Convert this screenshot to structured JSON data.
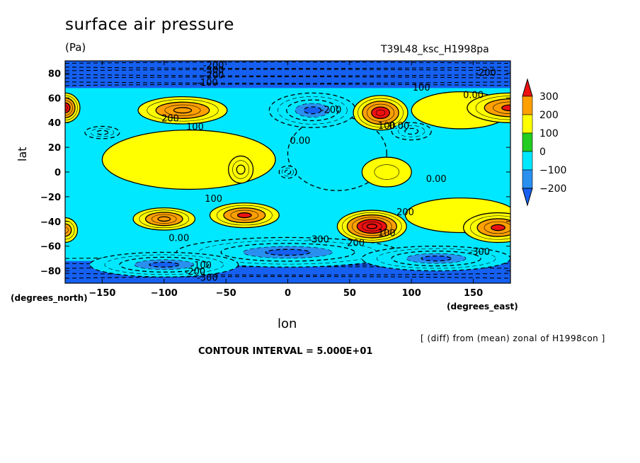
{
  "header": {
    "title": "surface air pressure",
    "units": "(Pa)",
    "run_id": "T39L48_ksc_H1998pa"
  },
  "axes": {
    "ylabel": "lat",
    "xlabel": "lon",
    "y_units": "(degrees_north)",
    "x_units": "(degrees_east)"
  },
  "footer": {
    "diff_note": "[ (diff) from (mean) zonal of H1998con ]",
    "contour_interval": "CONTOUR INTERVAL = 5.000E+01"
  },
  "colors": {
    "c_neg250": "#1560f0",
    "c_neg200": "#2a90f0",
    "c_neg100": "#00e8ff",
    "c_0": "#22cc22",
    "c_100": "#ffff00",
    "c_200": "#ffa000",
    "c_300": "#ee1111"
  },
  "chart_data": {
    "type": "contour",
    "title": "surface air pressure",
    "subtitle": "T39L48_ksc_H1998pa",
    "xlabel": "lon",
    "ylabel": "lat",
    "xlim": [
      -180,
      180
    ],
    "ylim": [
      -90,
      90
    ],
    "xticks": [
      -150,
      -100,
      -50,
      0,
      50,
      100,
      150
    ],
    "yticks": [
      -80,
      -60,
      -40,
      -20,
      0,
      20,
      40,
      60,
      80
    ],
    "colorbar": {
      "labels": [
        "300",
        "200",
        "100",
        "0",
        "−100",
        "−200"
      ]
    },
    "contour_interval": 50,
    "blobs": [
      {
        "lon": -180,
        "lat": 52,
        "rx": 12,
        "ry": 12,
        "value": 280
      },
      {
        "lon": 180,
        "lat": 52,
        "rx": 35,
        "ry": 12,
        "value": 250
      },
      {
        "lon": -85,
        "lat": 50,
        "rx": 36,
        "ry": 11,
        "value": 240
      },
      {
        "lon": 75,
        "lat": 48,
        "rx": 22,
        "ry": 14,
        "value": 300
      },
      {
        "lon": -100,
        "lat": -38,
        "rx": 25,
        "ry": 9,
        "value": 240
      },
      {
        "lon": -35,
        "lat": -35,
        "rx": 28,
        "ry": 10,
        "value": 250
      },
      {
        "lon": 68,
        "lat": -44,
        "rx": 28,
        "ry": 13,
        "value": 330
      },
      {
        "lon": 170,
        "lat": -45,
        "rx": 28,
        "ry": 12,
        "value": 260
      },
      {
        "lon": -180,
        "lat": -47,
        "rx": 10,
        "ry": 10,
        "value": 200
      },
      {
        "lon": -38,
        "lat": 2,
        "rx": 10,
        "ry": 11,
        "value": 140
      },
      {
        "lon": -80,
        "lat": 10,
        "rx": 70,
        "ry": 24,
        "value": 60
      },
      {
        "lon": 140,
        "lat": 50,
        "rx": 40,
        "ry": 15,
        "value": 60
      },
      {
        "lon": 140,
        "lat": -35,
        "rx": 45,
        "ry": 14,
        "value": 70
      },
      {
        "lon": -150,
        "lat": 32,
        "rx": 14,
        "ry": 5,
        "value": -160
      },
      {
        "lon": 20,
        "lat": 50,
        "rx": 35,
        "ry": 14,
        "value": -260
      },
      {
        "lon": 100,
        "lat": 33,
        "rx": 16,
        "ry": 7,
        "value": -160
      },
      {
        "lon": 0,
        "lat": 0,
        "rx": 7,
        "ry": 5,
        "value": -150
      },
      {
        "lon": 40,
        "lat": 15,
        "rx": 40,
        "ry": 30,
        "value": -20
      },
      {
        "lon": 80,
        "lat": 0,
        "rx": 20,
        "ry": 12,
        "value": 80
      },
      {
        "lon": 0,
        "lat": -65,
        "rx": 90,
        "ry": 12,
        "value": -260
      },
      {
        "lon": -100,
        "lat": -75,
        "rx": 60,
        "ry": 10,
        "value": -240
      },
      {
        "lon": 120,
        "lat": -70,
        "rx": 60,
        "ry": 10,
        "value": -240
      }
    ],
    "contour_labels": [
      {
        "text": "-200",
        "lon": -60,
        "lat": 86
      },
      {
        "text": "-300",
        "lon": -60,
        "lat": 82
      },
      {
        "text": "-200",
        "lon": -60,
        "lat": 78
      },
      {
        "text": "-100",
        "lon": -65,
        "lat": 72
      },
      {
        "text": "200",
        "lon": -95,
        "lat": 43
      },
      {
        "text": "100",
        "lon": -75,
        "lat": 36
      },
      {
        "text": "0.00",
        "lon": 10,
        "lat": 25
      },
      {
        "text": "-200",
        "lon": 35,
        "lat": 50
      },
      {
        "text": "100",
        "lon": 108,
        "lat": 68
      },
      {
        "text": "100",
        "lon": 80,
        "lat": 37
      },
      {
        "text": "0.00",
        "lon": 90,
        "lat": 37
      },
      {
        "text": "0.00",
        "lon": 150,
        "lat": 62
      },
      {
        "text": "-200",
        "lon": 160,
        "lat": 80
      },
      {
        "text": "0.00",
        "lon": 120,
        "lat": -6
      },
      {
        "text": "100",
        "lon": -60,
        "lat": -22
      },
      {
        "text": "0.00",
        "lon": -88,
        "lat": -54
      },
      {
        "text": "-300",
        "lon": 25,
        "lat": -55
      },
      {
        "text": "200",
        "lon": 55,
        "lat": -58
      },
      {
        "text": "200",
        "lon": 95,
        "lat": -33
      },
      {
        "text": "100",
        "lon": 80,
        "lat": -50
      },
      {
        "text": "-300",
        "lon": 155,
        "lat": -65
      },
      {
        "text": "-100",
        "lon": -70,
        "lat": -76
      },
      {
        "text": "-200",
        "lon": -75,
        "lat": -81
      },
      {
        "text": "-300",
        "lon": -65,
        "lat": -86
      }
    ]
  }
}
